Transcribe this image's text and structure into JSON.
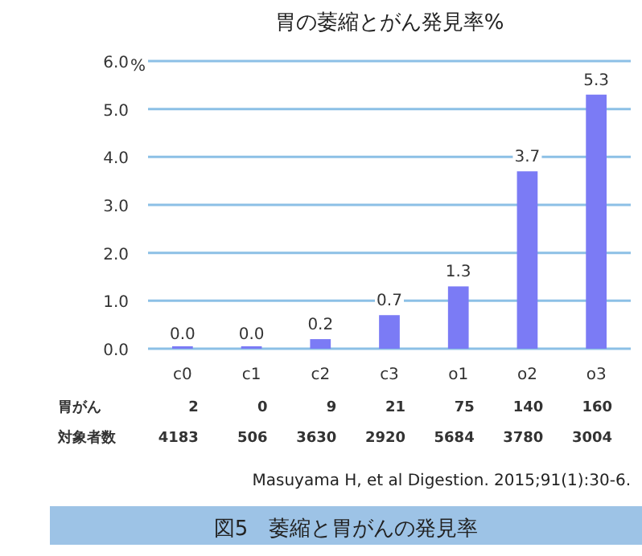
{
  "chart_data": {
    "type": "bar",
    "title": "胃の萎縮とがん発見率%",
    "ylabel": "%",
    "categories": [
      "c0",
      "c1",
      "c2",
      "c3",
      "o1",
      "o2",
      "o3"
    ],
    "values": [
      0.0,
      0.0,
      0.2,
      0.7,
      1.3,
      3.7,
      5.3
    ],
    "value_labels": [
      "0.0",
      "0.0",
      "0.2",
      "0.7",
      "1.3",
      "3.7",
      "5.3"
    ],
    "color": "#7b7bf5",
    "ylim": [
      0,
      6
    ],
    "yticks": [
      {
        "value": 0,
        "label": "0.0"
      },
      {
        "value": 1,
        "label": "1.0"
      },
      {
        "value": 2,
        "label": "2.0"
      },
      {
        "value": 3,
        "label": "3.0"
      },
      {
        "value": 4,
        "label": "4.0"
      },
      {
        "value": 5,
        "label": "5.0"
      },
      {
        "value": 6,
        "label": "6.0"
      }
    ],
    "grid": "y",
    "annotations": [
      "胃がん",
      "2",
      "0",
      "9",
      "21",
      "75",
      "140",
      "160",
      "対象者数",
      "4183",
      "506",
      "3630",
      "2920",
      "5684",
      "3780",
      "3004",
      "Masuyama H, et al Digestion. 2015;91(1):30-6.",
      "図5　萎縮と胃がんの発見率"
    ]
  }
}
